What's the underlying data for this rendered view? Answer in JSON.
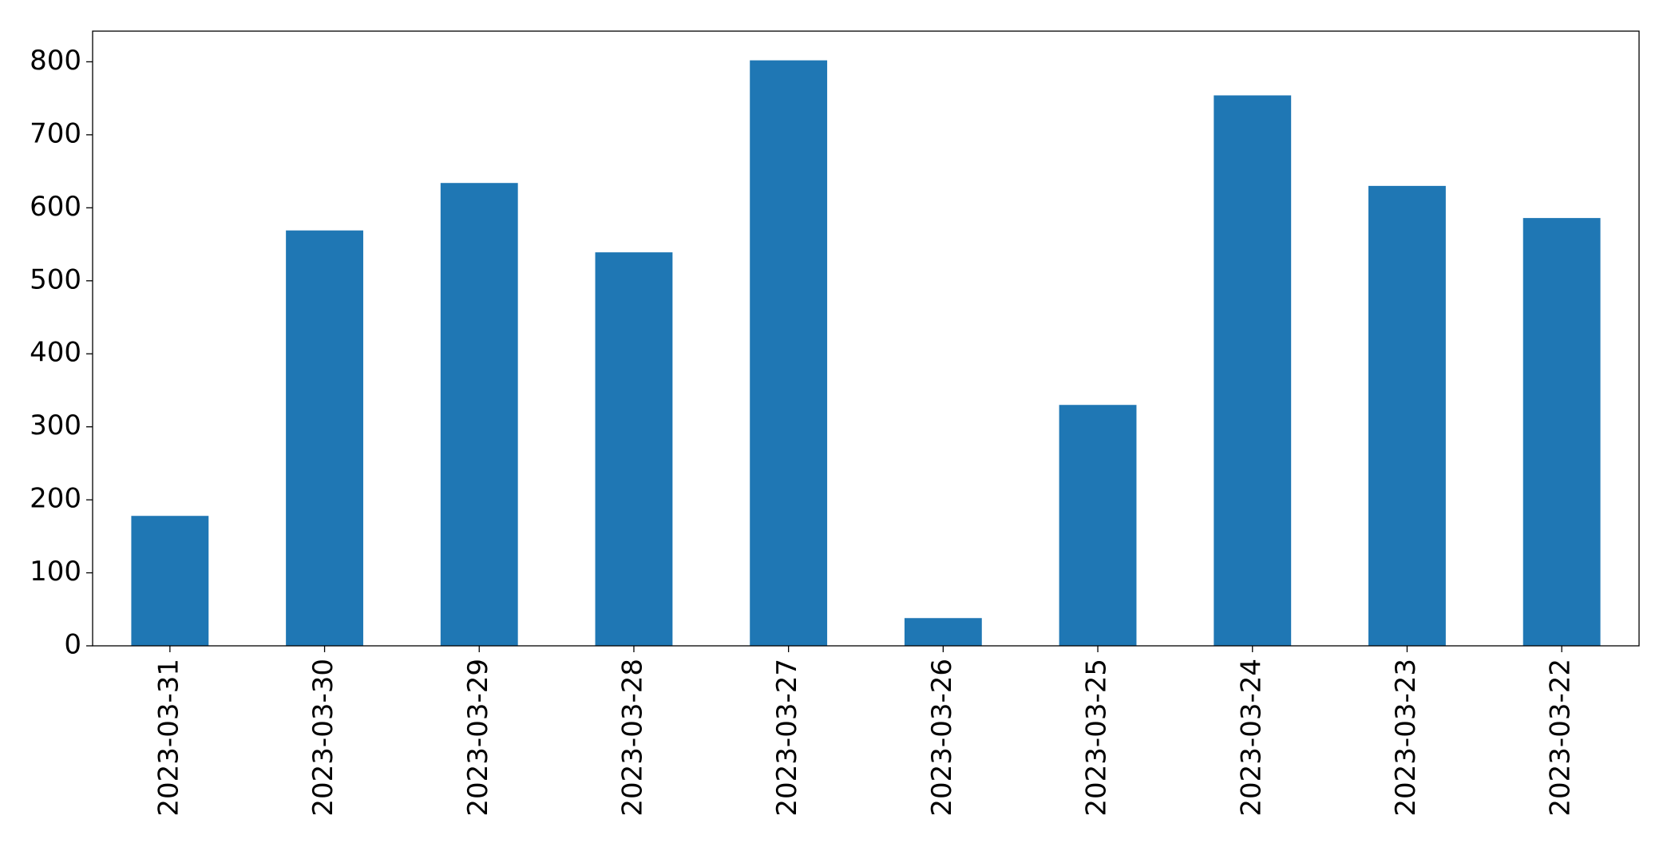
{
  "chart_data": {
    "type": "bar",
    "categories": [
      "2023-03-31",
      "2023-03-30",
      "2023-03-29",
      "2023-03-28",
      "2023-03-27",
      "2023-03-26",
      "2023-03-25",
      "2023-03-24",
      "2023-03-23",
      "2023-03-22"
    ],
    "values": [
      178,
      569,
      634,
      539,
      802,
      38,
      330,
      754,
      630,
      586
    ],
    "color": "#1f77b4",
    "ylim": [
      0,
      842
    ],
    "yticks": [
      0,
      100,
      200,
      300,
      400,
      500,
      600,
      700,
      800
    ],
    "grid": false
  }
}
